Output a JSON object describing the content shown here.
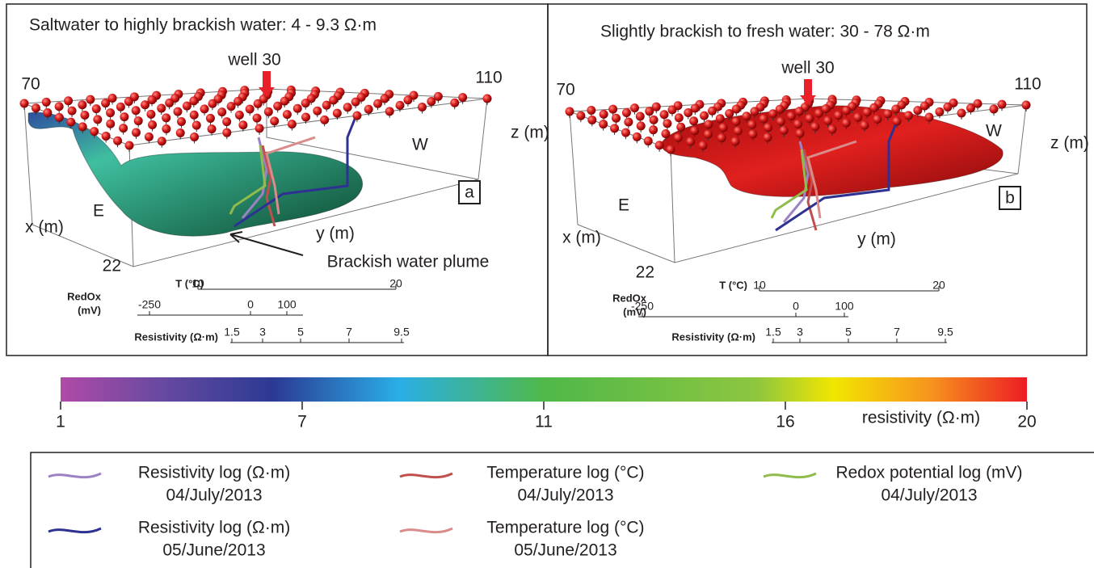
{
  "panels": [
    {
      "title": "Saltwater to highly brackish water: 4 - 9.3 Ω·m",
      "well": "well 30",
      "corner_left": 70,
      "corner_right": 110,
      "z_label": "z (m)",
      "w_label": "W",
      "e_label": "E",
      "x_label": "x (m)",
      "y_label": "y (m)",
      "depth": 22,
      "letter": "a",
      "annotation": "Brackish water plume"
    },
    {
      "title": "Slightly brackish to fresh water: 30 - 78 Ω·m",
      "well": "well 30",
      "corner_left": 70,
      "corner_right": 110,
      "z_label": "z (m)",
      "w_label": "W",
      "e_label": "E",
      "x_label": "x (m)",
      "y_label": "y (m)",
      "depth": 22,
      "letter": "b"
    }
  ],
  "scales": {
    "temperature": {
      "label": "T (°C)",
      "ticks": [
        10,
        20
      ]
    },
    "redox": {
      "label": [
        "RedOx",
        "(mV)"
      ],
      "ticks": [
        -250,
        0,
        100
      ]
    },
    "resistivity": {
      "label": "Resistivity (Ω·m)",
      "ticks": [
        1.5,
        3,
        5,
        7,
        9.5
      ]
    }
  },
  "colorbar": {
    "ticks": [
      1,
      7,
      11,
      16,
      20
    ],
    "label": "resistivity (Ω·m)"
  },
  "legend": [
    {
      "name": "Resistivity log (Ω·m)",
      "date": "04/July/2013",
      "color": "#9c82c4"
    },
    {
      "name": "Temperature log (°C)",
      "date": "04/July/2013",
      "color": "#c0504d"
    },
    {
      "name": "Redox potential log (mV)",
      "date": "04/July/2013",
      "color": "#8fbc4a"
    },
    {
      "name": "Resistivity log (Ω·m)",
      "date": "05/June/2013",
      "color": "#2e3192"
    },
    {
      "name": "Temperature log (°C)",
      "date": "05/June/2013",
      "color": "#d98c8a"
    }
  ]
}
